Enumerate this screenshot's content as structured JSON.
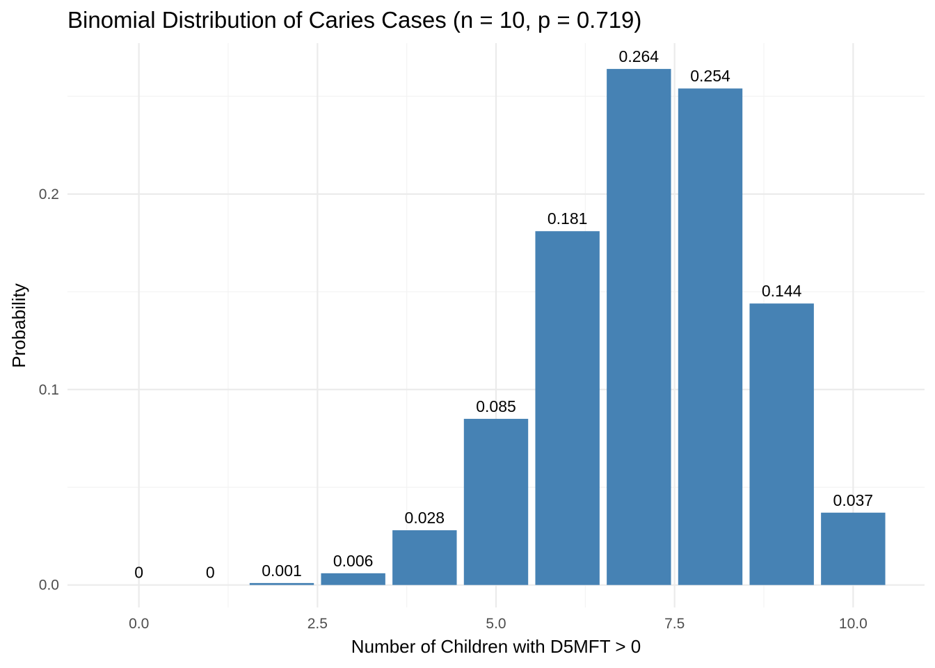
{
  "chart_data": {
    "type": "bar",
    "title": "Binomial Distribution of Caries Cases (n = 10, p = 0.719)",
    "xlabel": "Number of Children with D5MFT > 0",
    "ylabel": "Probability",
    "x": [
      0,
      1,
      2,
      3,
      4,
      5,
      6,
      7,
      8,
      9,
      10
    ],
    "values": [
      0.0,
      0.0,
      0.001,
      0.006,
      0.028,
      0.085,
      0.181,
      0.264,
      0.254,
      0.144,
      0.037
    ],
    "value_labels": [
      "0",
      "0",
      "0.001",
      "0.006",
      "0.028",
      "0.085",
      "0.181",
      "0.264",
      "0.254",
      "0.144",
      "0.037"
    ],
    "xlim": [
      -1,
      11
    ],
    "ylim": [
      -0.0115,
      0.2772
    ],
    "x_ticks": [
      0,
      2.5,
      5,
      7.5,
      10
    ],
    "x_tick_labels": [
      "0.0",
      "2.5",
      "5.0",
      "7.5",
      "10.0"
    ],
    "y_ticks": [
      0,
      0.1,
      0.2
    ],
    "y_tick_labels": [
      "0.0",
      "0.1",
      "0.2"
    ],
    "bar_color": "#4682b4",
    "grid": true,
    "legend": "none"
  }
}
